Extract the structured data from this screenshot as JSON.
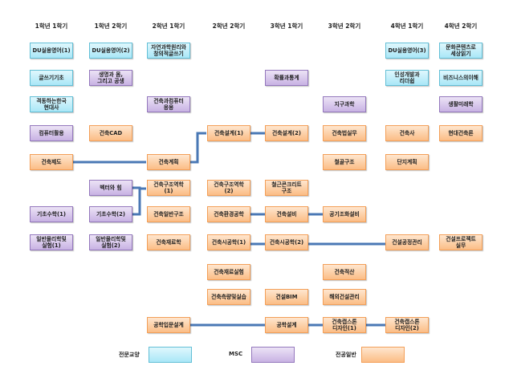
{
  "semesters": [
    "1학년 1학기",
    "1학년 2학기",
    "2학년 1학기",
    "2학년 2학기",
    "3학년 1학기",
    "3학년 2학기",
    "4학년 1학기",
    "4학년 2학기"
  ],
  "courses": [
    [
      {
        "name": "DU실용영어(1)",
        "cat": "c"
      },
      {
        "name": "글쓰기기초",
        "cat": "c"
      },
      {
        "name": "격동하는한국\n현대사",
        "cat": "c"
      },
      {
        "name": "컴퓨터활용",
        "cat": "p"
      },
      {
        "name": "건축제도",
        "cat": "o"
      },
      {
        "name": "기초수학(1)",
        "cat": "p"
      },
      {
        "name": "일반물리학및\n실험(1)",
        "cat": "p"
      }
    ],
    [
      {
        "name": "DU실용영어(2)",
        "cat": "c"
      },
      {
        "name": "생명과 몸,\n그리고 공생",
        "cat": "p"
      },
      {
        "name": "건축CAD",
        "cat": "o"
      },
      {
        "name": "벡터와 힘",
        "cat": "p"
      },
      {
        "name": "기초수학(2)",
        "cat": "p"
      },
      {
        "name": "일반물리학및\n실험(2)",
        "cat": "p"
      }
    ],
    [
      {
        "name": "자연과학원리와\n창의적글쓰기",
        "cat": "c"
      },
      {
        "name": "건축과컴퓨터\n응용",
        "cat": "p"
      },
      {
        "name": "건축계획",
        "cat": "o"
      },
      {
        "name": "건축구조역학\n(1)",
        "cat": "o"
      },
      {
        "name": "건축일반구조",
        "cat": "o"
      },
      {
        "name": "건축재료학",
        "cat": "o"
      },
      {
        "name": "공학입문설계",
        "cat": "o"
      }
    ],
    [
      {
        "name": "건축설계(1)",
        "cat": "o"
      },
      {
        "name": "건축구조역학\n(2)",
        "cat": "o"
      },
      {
        "name": "건축환경공학",
        "cat": "o"
      },
      {
        "name": "건축시공학(1)",
        "cat": "o"
      },
      {
        "name": "건축재료실험",
        "cat": "o"
      },
      {
        "name": "건축측량및실습",
        "cat": "o"
      }
    ],
    [
      {
        "name": "확률과통계",
        "cat": "p"
      },
      {
        "name": "건축설계(2)",
        "cat": "o"
      },
      {
        "name": "철근콘크리트\n구조",
        "cat": "o"
      },
      {
        "name": "건축설비",
        "cat": "o"
      },
      {
        "name": "건축시공학(2)",
        "cat": "o"
      },
      {
        "name": "건설BIM",
        "cat": "o"
      },
      {
        "name": "공학설계",
        "cat": "o"
      }
    ],
    [
      {
        "name": "지구과학",
        "cat": "p"
      },
      {
        "name": "건축법실무",
        "cat": "o"
      },
      {
        "name": "철골구조",
        "cat": "o"
      },
      {
        "name": "공기조화설비",
        "cat": "o"
      },
      {
        "name": "건축적산",
        "cat": "o"
      },
      {
        "name": "해외건설관리",
        "cat": "o"
      },
      {
        "name": "건축캡스톤\n디자인(1)",
        "cat": "o"
      }
    ],
    [
      {
        "name": "DU실용영어(3)",
        "cat": "c"
      },
      {
        "name": "인성개발과\n리더쉽",
        "cat": "c"
      },
      {
        "name": "건축사",
        "cat": "o"
      },
      {
        "name": "단지계획",
        "cat": "o"
      },
      {
        "name": "건설공정관리",
        "cat": "o"
      },
      {
        "name": "건축캡스톤\n디자인(2)",
        "cat": "o"
      }
    ],
    [
      {
        "name": "문화콘텐츠로\n세상읽기",
        "cat": "c"
      },
      {
        "name": "비즈니스의이해",
        "cat": "c"
      },
      {
        "name": "생활미래학",
        "cat": "p"
      },
      {
        "name": "현대건축론",
        "cat": "o"
      },
      {
        "name": "건설프로젝트\n실무",
        "cat": "o"
      }
    ]
  ],
  "legend": [
    {
      "label": "전문교양",
      "cat": "c",
      "color": "#a9e7f7"
    },
    {
      "label": "MSC",
      "cat": "p",
      "color": "#c8b2e3"
    },
    {
      "label": "전공일반",
      "cat": "o",
      "color": "#fbbd86"
    }
  ],
  "connector_color": "#4a78b5"
}
